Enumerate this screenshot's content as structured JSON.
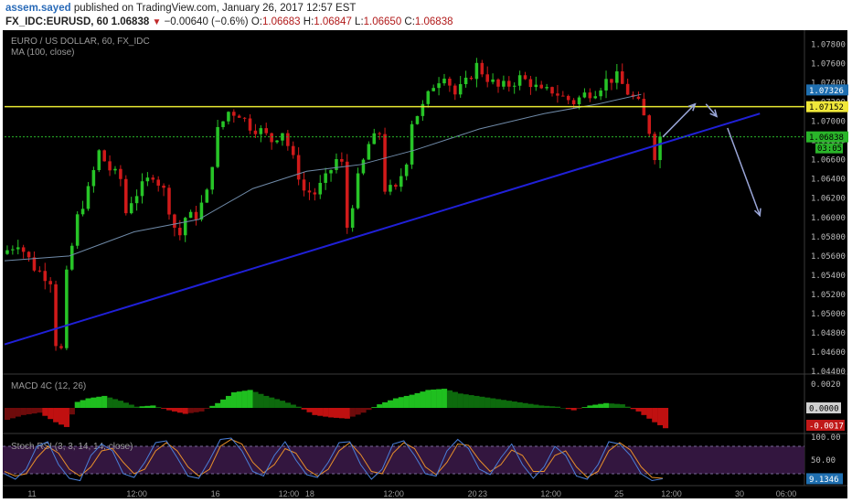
{
  "header": {
    "author": "assem.sayed",
    "published_text": "published on TradingView.com, January 26, 2017 12:57 EST",
    "symbol": "FX_IDC:EURUSD, 60",
    "last": "1.06838",
    "change": "−0.00640 (−0.6%)",
    "o_label": "O:",
    "o_value": "1.06683",
    "h_label": "H:",
    "h_value": "1.06847",
    "l_label": "L:",
    "l_value": "1.06650",
    "c_label": "C:",
    "c_value": "1.06838"
  },
  "colors": {
    "background": "#000000",
    "up": "#27c427",
    "down": "#d01a1a",
    "trendline": "#2020d8",
    "resistance": "#e8e832",
    "arrows": "#9aa6d8",
    "ma": "#6f8aa8",
    "stoch_band": "#33163f"
  },
  "chart_data": [
    {
      "type": "candlestick",
      "title": "EURO / US DOLLAR, 60, FX_IDC",
      "study": "MA (100, close)",
      "ylim": [
        1.044,
        1.079
      ],
      "y_ticks": [
        "1.07800",
        "1.07600",
        "1.07400",
        "1.07200",
        "1.07000",
        "1.06800",
        "1.06600",
        "1.06400",
        "1.06200",
        "1.06000",
        "1.05800",
        "1.05600",
        "1.05400",
        "1.05200",
        "1.05000",
        "1.04800",
        "1.04600",
        "1.04400"
      ],
      "x_ticks": [
        "11",
        "12:00",
        "16",
        "12:00",
        "18",
        "12:00",
        "20",
        "23",
        "12:00",
        "25",
        "12:00",
        "30",
        "06:00"
      ],
      "close_path": [
        [
          0,
          1.0562
        ],
        [
          3,
          1.0574
        ],
        [
          6,
          1.0548
        ],
        [
          9,
          1.0535
        ],
        [
          10,
          1.047
        ],
        [
          11,
          1.0462
        ],
        [
          12,
          1.054
        ],
        [
          14,
          1.06
        ],
        [
          16,
          1.0628
        ],
        [
          18,
          1.0668
        ],
        [
          20,
          1.065
        ],
        [
          22,
          1.064
        ],
        [
          23,
          1.0605
        ],
        [
          24,
          1.0618
        ],
        [
          26,
          1.0632
        ],
        [
          28,
          1.0645
        ],
        [
          30,
          1.0628
        ],
        [
          32,
          1.059
        ],
        [
          33,
          1.0582
        ],
        [
          34,
          1.06
        ],
        [
          36,
          1.0602
        ],
        [
          38,
          1.0625
        ],
        [
          40,
          1.069
        ],
        [
          42,
          1.071
        ],
        [
          44,
          1.0708
        ],
        [
          46,
          1.0695
        ],
        [
          48,
          1.069
        ],
        [
          50,
          1.068
        ],
        [
          52,
          1.069
        ],
        [
          54,
          1.066
        ],
        [
          56,
          1.0628
        ],
        [
          58,
          1.0625
        ],
        [
          60,
          1.064
        ],
        [
          62,
          1.066
        ],
        [
          63,
          1.0655
        ],
        [
          64,
          1.059
        ],
        [
          66,
          1.064
        ],
        [
          68,
          1.0676
        ],
        [
          70,
          1.0688
        ],
        [
          71,
          1.063
        ],
        [
          73,
          1.0628
        ],
        [
          75,
          1.066
        ],
        [
          76,
          1.07
        ],
        [
          78,
          1.0715
        ],
        [
          80,
          1.0738
        ],
        [
          82,
          1.075
        ],
        [
          84,
          1.0728
        ],
        [
          86,
          1.074
        ],
        [
          88,
          1.0758
        ],
        [
          90,
          1.0745
        ],
        [
          92,
          1.0735
        ],
        [
          94,
          1.0738
        ],
        [
          96,
          1.0745
        ],
        [
          98,
          1.074
        ],
        [
          100,
          1.073
        ],
        [
          102,
          1.0732
        ],
        [
          104,
          1.0725
        ],
        [
          106,
          1.072
        ],
        [
          108,
          1.0728
        ],
        [
          110,
          1.0732
        ],
        [
          112,
          1.0742
        ],
        [
          114,
          1.0746
        ],
        [
          116,
          1.073
        ],
        [
          118,
          1.0718
        ],
        [
          120,
          1.069
        ],
        [
          121,
          1.0665
        ],
        [
          122,
          1.06838
        ]
      ],
      "ma_path": [
        [
          0,
          1.0555
        ],
        [
          12,
          1.056
        ],
        [
          24,
          1.0585
        ],
        [
          36,
          1.0598
        ],
        [
          46,
          1.063
        ],
        [
          56,
          1.0648
        ],
        [
          66,
          1.0655
        ],
        [
          76,
          1.067
        ],
        [
          88,
          1.0692
        ],
        [
          100,
          1.0708
        ],
        [
          110,
          1.0718
        ],
        [
          118,
          1.0728
        ]
      ],
      "trendline": [
        [
          0,
          1.0468
        ],
        [
          140,
          1.0708
        ]
      ],
      "resistance": 1.07152,
      "last_close_line": 1.06838,
      "projection_arrows": [
        [
          [
            122,
            1.06838
          ],
          [
            128,
            1.0718
          ]
        ],
        [
          [
            130,
            1.0718
          ],
          [
            132,
            1.0705
          ]
        ],
        [
          [
            134,
            1.0693
          ],
          [
            140,
            1.0602
          ]
        ]
      ],
      "labels": [
        {
          "value": 1.07326,
          "text": "1.07326",
          "bg": "#1f6fb0",
          "fg": "#ffffff"
        },
        {
          "value": 1.07152,
          "text": "1.07152",
          "bg": "#f0e83a",
          "fg": "#000000"
        },
        {
          "value": 1.06838,
          "text": "1.06838",
          "bg": "#2ab52a",
          "fg": "#000000"
        }
      ],
      "countdown": "03:05",
      "candles": 122
    },
    {
      "type": "histogram",
      "title": "MACD 4C (12, 26)",
      "y_ticks": [
        "0.0020",
        "0.0000"
      ],
      "labels": [
        {
          "text": "0.0000",
          "bg": "#cfcfcf",
          "fg": "#000000"
        },
        {
          "text": "-0.0017",
          "bg": "#c01818",
          "fg": "#ffffff"
        }
      ],
      "values": [
        [
          0,
          -0.001
        ],
        [
          3,
          -0.0006
        ],
        [
          6,
          -0.0004
        ],
        [
          9,
          -0.0012
        ],
        [
          11,
          -0.0016
        ],
        [
          13,
          0.0005
        ],
        [
          15,
          0.0008
        ],
        [
          18,
          0.001
        ],
        [
          21,
          0.0006
        ],
        [
          24,
          0.0001
        ],
        [
          27,
          0.0002
        ],
        [
          30,
          -0.0002
        ],
        [
          33,
          -0.0005
        ],
        [
          36,
          -0.0003
        ],
        [
          39,
          0.0004
        ],
        [
          42,
          0.0013
        ],
        [
          45,
          0.0015
        ],
        [
          48,
          0.001
        ],
        [
          51,
          0.0006
        ],
        [
          54,
          0.0001
        ],
        [
          57,
          -0.0006
        ],
        [
          60,
          -0.0008
        ],
        [
          63,
          -0.0009
        ],
        [
          66,
          -0.0004
        ],
        [
          69,
          0.0003
        ],
        [
          72,
          0.0008
        ],
        [
          75,
          0.0011
        ],
        [
          78,
          0.0015
        ],
        [
          81,
          0.0016
        ],
        [
          84,
          0.0012
        ],
        [
          87,
          0.001
        ],
        [
          90,
          0.0008
        ],
        [
          93,
          0.0006
        ],
        [
          96,
          0.0004
        ],
        [
          99,
          0.0002
        ],
        [
          102,
          0.0001
        ],
        [
          105,
          -0.0002
        ],
        [
          108,
          0.0002
        ],
        [
          111,
          0.0004
        ],
        [
          114,
          0.0003
        ],
        [
          117,
          -0.0003
        ],
        [
          120,
          -0.0012
        ],
        [
          122,
          -0.0017
        ]
      ]
    },
    {
      "type": "line",
      "title": "Stoch RSI (3, 3, 14, 14, close)",
      "ylim": [
        0,
        100
      ],
      "y_ticks": [
        "100.00",
        "50.00"
      ],
      "bands": [
        80,
        20
      ],
      "label": {
        "text": "9.1346",
        "bg": "#1f6fb0",
        "fg": "#ffffff"
      },
      "k": [
        [
          0,
          20
        ],
        [
          2,
          8
        ],
        [
          4,
          30
        ],
        [
          6,
          80
        ],
        [
          8,
          90
        ],
        [
          10,
          40
        ],
        [
          12,
          10
        ],
        [
          14,
          5
        ],
        [
          16,
          60
        ],
        [
          18,
          85
        ],
        [
          20,
          70
        ],
        [
          22,
          20
        ],
        [
          24,
          12
        ],
        [
          26,
          45
        ],
        [
          28,
          88
        ],
        [
          30,
          92
        ],
        [
          32,
          55
        ],
        [
          34,
          15
        ],
        [
          36,
          10
        ],
        [
          38,
          50
        ],
        [
          40,
          95
        ],
        [
          42,
          98
        ],
        [
          44,
          70
        ],
        [
          46,
          25
        ],
        [
          48,
          15
        ],
        [
          50,
          60
        ],
        [
          52,
          90
        ],
        [
          54,
          50
        ],
        [
          56,
          18
        ],
        [
          58,
          12
        ],
        [
          60,
          45
        ],
        [
          62,
          88
        ],
        [
          64,
          90
        ],
        [
          66,
          40
        ],
        [
          68,
          8
        ],
        [
          70,
          30
        ],
        [
          72,
          85
        ],
        [
          74,
          92
        ],
        [
          76,
          60
        ],
        [
          78,
          20
        ],
        [
          80,
          15
        ],
        [
          82,
          70
        ],
        [
          84,
          95
        ],
        [
          86,
          75
        ],
        [
          88,
          30
        ],
        [
          90,
          18
        ],
        [
          92,
          55
        ],
        [
          94,
          85
        ],
        [
          96,
          40
        ],
        [
          98,
          10
        ],
        [
          100,
          35
        ],
        [
          102,
          80
        ],
        [
          104,
          60
        ],
        [
          106,
          15
        ],
        [
          108,
          8
        ],
        [
          110,
          40
        ],
        [
          112,
          90
        ],
        [
          114,
          85
        ],
        [
          116,
          60
        ],
        [
          118,
          20
        ],
        [
          120,
          5
        ],
        [
          122,
          9.1346
        ]
      ],
      "d": [
        [
          0,
          25
        ],
        [
          2,
          15
        ],
        [
          4,
          20
        ],
        [
          6,
          55
        ],
        [
          8,
          80
        ],
        [
          10,
          65
        ],
        [
          12,
          30
        ],
        [
          14,
          15
        ],
        [
          16,
          35
        ],
        [
          18,
          70
        ],
        [
          20,
          75
        ],
        [
          22,
          45
        ],
        [
          24,
          20
        ],
        [
          26,
          30
        ],
        [
          28,
          70
        ],
        [
          30,
          88
        ],
        [
          32,
          70
        ],
        [
          34,
          35
        ],
        [
          36,
          15
        ],
        [
          38,
          30
        ],
        [
          40,
          80
        ],
        [
          42,
          95
        ],
        [
          44,
          85
        ],
        [
          46,
          45
        ],
        [
          48,
          22
        ],
        [
          50,
          40
        ],
        [
          52,
          75
        ],
        [
          54,
          65
        ],
        [
          56,
          30
        ],
        [
          58,
          15
        ],
        [
          60,
          30
        ],
        [
          62,
          70
        ],
        [
          64,
          88
        ],
        [
          66,
          62
        ],
        [
          68,
          25
        ],
        [
          70,
          20
        ],
        [
          72,
          65
        ],
        [
          74,
          88
        ],
        [
          76,
          75
        ],
        [
          78,
          35
        ],
        [
          80,
          18
        ],
        [
          82,
          45
        ],
        [
          84,
          85
        ],
        [
          86,
          82
        ],
        [
          88,
          50
        ],
        [
          90,
          25
        ],
        [
          92,
          40
        ],
        [
          94,
          72
        ],
        [
          96,
          60
        ],
        [
          98,
          25
        ],
        [
          100,
          25
        ],
        [
          102,
          60
        ],
        [
          104,
          70
        ],
        [
          106,
          35
        ],
        [
          108,
          12
        ],
        [
          110,
          25
        ],
        [
          112,
          70
        ],
        [
          114,
          88
        ],
        [
          116,
          72
        ],
        [
          118,
          35
        ],
        [
          120,
          12
        ],
        [
          122,
          10
        ]
      ]
    }
  ]
}
